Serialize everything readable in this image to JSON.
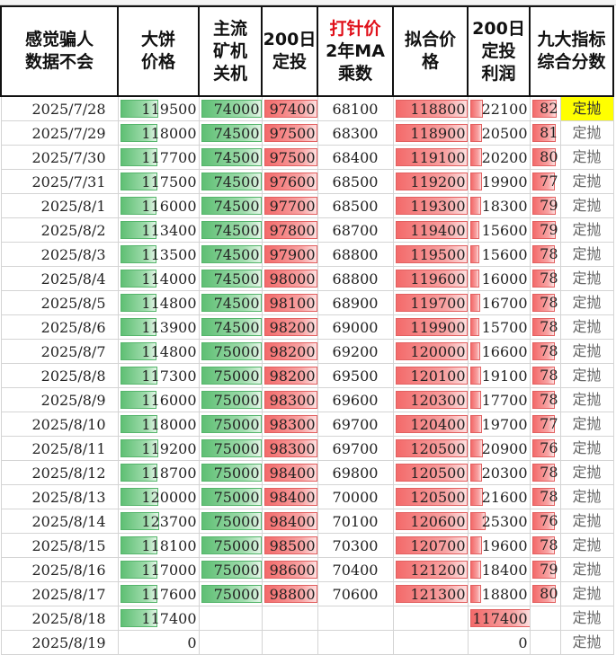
{
  "headers": {
    "c1": [
      "感觉骗人",
      "数据不会"
    ],
    "c2": [
      "大饼",
      "价格"
    ],
    "c3": [
      "主流",
      "矿机",
      "关机"
    ],
    "c4": [
      "200日",
      "定投"
    ],
    "c5": [
      "打针价",
      "2年MA",
      "乘数"
    ],
    "c6": [
      "拟合价",
      "格"
    ],
    "c7": [
      "200日",
      "定投",
      "利润"
    ],
    "c8": [
      "九大指标",
      "综合分数"
    ]
  },
  "colors": {
    "green_bar": "#5fbf74",
    "red_bar": "#f36a6a",
    "highlight": "#ffff00",
    "header_red": "#e0101a"
  },
  "rows": [
    {
      "date": "2025/7/28",
      "btc": "119500",
      "miner": "74000",
      "dca": "97400",
      "ma": "68100",
      "fit": "118800",
      "profit": "22100",
      "score": "82",
      "act": "定抛",
      "btc_f": 0.48,
      "dca_f": 0.98,
      "fit_f": 0.98,
      "profit_f": 0.22,
      "score_f": 0.82,
      "hl": true
    },
    {
      "date": "2025/7/29",
      "btc": "118000",
      "miner": "74500",
      "dca": "97500",
      "ma": "68300",
      "fit": "118900",
      "profit": "20500",
      "score": "81",
      "act": "定抛",
      "btc_f": 0.47,
      "dca_f": 0.98,
      "fit_f": 0.98,
      "profit_f": 0.2,
      "score_f": 0.81,
      "hl": false
    },
    {
      "date": "2025/7/30",
      "btc": "117700",
      "miner": "74500",
      "dca": "97500",
      "ma": "68400",
      "fit": "119100",
      "profit": "20200",
      "score": "80",
      "act": "定抛",
      "btc_f": 0.47,
      "dca_f": 0.98,
      "fit_f": 0.98,
      "profit_f": 0.2,
      "score_f": 0.8,
      "hl": false
    },
    {
      "date": "2025/7/31",
      "btc": "117500",
      "miner": "74500",
      "dca": "97600",
      "ma": "68500",
      "fit": "119200",
      "profit": "19900",
      "score": "77",
      "act": "定抛",
      "btc_f": 0.47,
      "dca_f": 0.98,
      "fit_f": 0.98,
      "profit_f": 0.2,
      "score_f": 0.77,
      "hl": false
    },
    {
      "date": "2025/8/1",
      "btc": "116000",
      "miner": "74500",
      "dca": "97700",
      "ma": "68500",
      "fit": "119300",
      "profit": "18300",
      "score": "79",
      "act": "定抛",
      "btc_f": 0.46,
      "dca_f": 0.98,
      "fit_f": 0.98,
      "profit_f": 0.18,
      "score_f": 0.79,
      "hl": false
    },
    {
      "date": "2025/8/2",
      "btc": "113400",
      "miner": "74500",
      "dca": "97800",
      "ma": "68700",
      "fit": "119400",
      "profit": "15600",
      "score": "79",
      "act": "定抛",
      "btc_f": 0.45,
      "dca_f": 0.98,
      "fit_f": 0.98,
      "profit_f": 0.15,
      "score_f": 0.79,
      "hl": false
    },
    {
      "date": "2025/8/3",
      "btc": "113500",
      "miner": "74500",
      "dca": "97900",
      "ma": "68800",
      "fit": "119500",
      "profit": "15600",
      "score": "78",
      "act": "定抛",
      "btc_f": 0.45,
      "dca_f": 0.98,
      "fit_f": 0.98,
      "profit_f": 0.15,
      "score_f": 0.78,
      "hl": false
    },
    {
      "date": "2025/8/4",
      "btc": "114000",
      "miner": "74500",
      "dca": "98000",
      "ma": "68800",
      "fit": "119600",
      "profit": "16000",
      "score": "78",
      "act": "定抛",
      "btc_f": 0.46,
      "dca_f": 0.98,
      "fit_f": 0.98,
      "profit_f": 0.16,
      "score_f": 0.78,
      "hl": false
    },
    {
      "date": "2025/8/5",
      "btc": "114800",
      "miner": "74500",
      "dca": "98100",
      "ma": "68900",
      "fit": "119700",
      "profit": "16700",
      "score": "78",
      "act": "定抛",
      "btc_f": 0.46,
      "dca_f": 0.98,
      "fit_f": 0.98,
      "profit_f": 0.17,
      "score_f": 0.78,
      "hl": false
    },
    {
      "date": "2025/8/6",
      "btc": "113900",
      "miner": "74500",
      "dca": "98200",
      "ma": "69000",
      "fit": "119900",
      "profit": "15700",
      "score": "78",
      "act": "定抛",
      "btc_f": 0.45,
      "dca_f": 0.98,
      "fit_f": 0.98,
      "profit_f": 0.16,
      "score_f": 0.78,
      "hl": false
    },
    {
      "date": "2025/8/7",
      "btc": "114800",
      "miner": "75000",
      "dca": "98200",
      "ma": "69200",
      "fit": "120000",
      "profit": "16600",
      "score": "78",
      "act": "定抛",
      "btc_f": 0.46,
      "dca_f": 0.98,
      "fit_f": 0.98,
      "profit_f": 0.17,
      "score_f": 0.78,
      "hl": false
    },
    {
      "date": "2025/8/8",
      "btc": "117300",
      "miner": "75000",
      "dca": "98200",
      "ma": "69500",
      "fit": "120100",
      "profit": "19100",
      "score": "78",
      "act": "定抛",
      "btc_f": 0.47,
      "dca_f": 0.98,
      "fit_f": 0.98,
      "profit_f": 0.19,
      "score_f": 0.78,
      "hl": false
    },
    {
      "date": "2025/8/9",
      "btc": "116000",
      "miner": "75000",
      "dca": "98300",
      "ma": "69600",
      "fit": "120300",
      "profit": "17700",
      "score": "78",
      "act": "定抛",
      "btc_f": 0.46,
      "dca_f": 0.98,
      "fit_f": 0.98,
      "profit_f": 0.18,
      "score_f": 0.78,
      "hl": false
    },
    {
      "date": "2025/8/10",
      "btc": "118000",
      "miner": "75000",
      "dca": "98300",
      "ma": "69700",
      "fit": "120400",
      "profit": "19700",
      "score": "77",
      "act": "定抛",
      "btc_f": 0.47,
      "dca_f": 0.98,
      "fit_f": 0.98,
      "profit_f": 0.2,
      "score_f": 0.77,
      "hl": false
    },
    {
      "date": "2025/8/11",
      "btc": "119200",
      "miner": "75000",
      "dca": "98300",
      "ma": "69700",
      "fit": "120500",
      "profit": "20900",
      "score": "76",
      "act": "定抛",
      "btc_f": 0.48,
      "dca_f": 0.98,
      "fit_f": 0.98,
      "profit_f": 0.21,
      "score_f": 0.76,
      "hl": false
    },
    {
      "date": "2025/8/12",
      "btc": "118700",
      "miner": "75000",
      "dca": "98400",
      "ma": "69800",
      "fit": "120500",
      "profit": "20300",
      "score": "78",
      "act": "定抛",
      "btc_f": 0.47,
      "dca_f": 0.98,
      "fit_f": 0.98,
      "profit_f": 0.2,
      "score_f": 0.78,
      "hl": false
    },
    {
      "date": "2025/8/13",
      "btc": "120000",
      "miner": "75000",
      "dca": "98400",
      "ma": "70000",
      "fit": "120500",
      "profit": "21600",
      "score": "78",
      "act": "定抛",
      "btc_f": 0.48,
      "dca_f": 0.98,
      "fit_f": 0.98,
      "profit_f": 0.22,
      "score_f": 0.78,
      "hl": false
    },
    {
      "date": "2025/8/14",
      "btc": "123700",
      "miner": "75000",
      "dca": "98400",
      "ma": "70100",
      "fit": "120600",
      "profit": "25300",
      "score": "76",
      "act": "定抛",
      "btc_f": 0.49,
      "dca_f": 0.98,
      "fit_f": 0.98,
      "profit_f": 0.25,
      "score_f": 0.76,
      "hl": false
    },
    {
      "date": "2025/8/15",
      "btc": "118100",
      "miner": "75000",
      "dca": "98500",
      "ma": "70300",
      "fit": "120700",
      "profit": "19600",
      "score": "78",
      "act": "定抛",
      "btc_f": 0.47,
      "dca_f": 0.98,
      "fit_f": 0.98,
      "profit_f": 0.2,
      "score_f": 0.78,
      "hl": false
    },
    {
      "date": "2025/8/16",
      "btc": "117000",
      "miner": "75000",
      "dca": "98600",
      "ma": "70400",
      "fit": "121200",
      "profit": "18400",
      "score": "79",
      "act": "定抛",
      "btc_f": 0.47,
      "dca_f": 0.98,
      "fit_f": 0.98,
      "profit_f": 0.18,
      "score_f": 0.79,
      "hl": false
    },
    {
      "date": "2025/8/17",
      "btc": "117600",
      "miner": "75000",
      "dca": "98800",
      "ma": "70600",
      "fit": "121300",
      "profit": "18800",
      "score": "80",
      "act": "定抛",
      "btc_f": 0.47,
      "dca_f": 0.98,
      "fit_f": 0.98,
      "profit_f": 0.19,
      "score_f": 0.8,
      "hl": false
    },
    {
      "date": "2025/8/18",
      "btc": "117400",
      "miner": "",
      "dca": "",
      "ma": "",
      "fit": "",
      "profit": "117400",
      "score": "",
      "act": "定抛",
      "btc_f": 0.47,
      "dca_f": 0,
      "fit_f": 0,
      "profit_f": 1.0,
      "score_f": 0,
      "hl": false
    },
    {
      "date": "2025/8/19",
      "btc": "0",
      "miner": "",
      "dca": "",
      "ma": "",
      "fit": "",
      "profit": "0",
      "score": "",
      "act": "定抛",
      "btc_f": 0,
      "dca_f": 0,
      "fit_f": 0,
      "profit_f": 0,
      "score_f": 0,
      "hl": false
    }
  ]
}
